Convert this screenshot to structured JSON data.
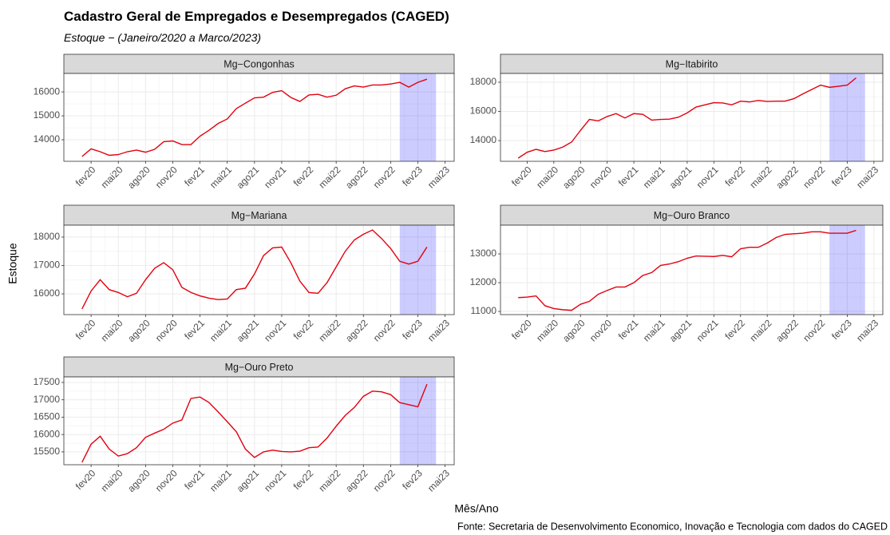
{
  "header": {
    "title": "Cadastro Geral de Empregados e Desempregados (CAGED)",
    "subtitle": "Estoque − (Janeiro/2020 a Marco/2023)",
    "xlabel": "Mês/Ano",
    "ylabel": "Estoque",
    "source": "Fonte: Secretaria de Desenvolvimento Economico, Inovação e Tecnologia com dados do CAGED"
  },
  "chart_data": [
    {
      "type": "line",
      "title": "Mg−Congonhas",
      "color": "#e3000f",
      "highlight": [
        "2022-12",
        "2023-04"
      ],
      "highlight_color": "#0000ff",
      "x": [
        "2020-01",
        "2020-02",
        "2020-03",
        "2020-04",
        "2020-05",
        "2020-06",
        "2020-07",
        "2020-08",
        "2020-09",
        "2020-10",
        "2020-11",
        "2020-12",
        "2021-01",
        "2021-02",
        "2021-03",
        "2021-04",
        "2021-05",
        "2021-06",
        "2021-07",
        "2021-08",
        "2021-09",
        "2021-10",
        "2021-11",
        "2021-12",
        "2022-01",
        "2022-02",
        "2022-03",
        "2022-04",
        "2022-05",
        "2022-06",
        "2022-07",
        "2022-08",
        "2022-09",
        "2022-10",
        "2022-11",
        "2022-12",
        "2023-01",
        "2023-02",
        "2023-03"
      ],
      "values": [
        13300,
        13620,
        13500,
        13350,
        13380,
        13500,
        13570,
        13480,
        13600,
        13920,
        13950,
        13800,
        13800,
        14150,
        14400,
        14680,
        14870,
        15300,
        15530,
        15750,
        15780,
        15980,
        16050,
        15770,
        15600,
        15870,
        15900,
        15780,
        15860,
        16130,
        16250,
        16200,
        16290,
        16290,
        16330,
        16400,
        16200,
        16400,
        16530
      ],
      "xlim": [
        "2019-11",
        "2023-06"
      ],
      "xticks": [
        {
          "value": "2020-02",
          "label": "fev20"
        },
        {
          "value": "2020-05",
          "label": "mai20"
        },
        {
          "value": "2020-08",
          "label": "ago20"
        },
        {
          "value": "2020-11",
          "label": "nov20"
        },
        {
          "value": "2021-02",
          "label": "fev21"
        },
        {
          "value": "2021-05",
          "label": "mai21"
        },
        {
          "value": "2021-08",
          "label": "ago21"
        },
        {
          "value": "2021-11",
          "label": "nov21"
        },
        {
          "value": "2022-02",
          "label": "fev22"
        },
        {
          "value": "2022-05",
          "label": "mai22"
        },
        {
          "value": "2022-08",
          "label": "ago22"
        },
        {
          "value": "2022-11",
          "label": "nov22"
        },
        {
          "value": "2023-02",
          "label": "fev23"
        },
        {
          "value": "2023-05",
          "label": "mai23"
        }
      ],
      "ylim": [
        13100,
        16770
      ],
      "yticks": [
        14000,
        15000,
        16000
      ],
      "grid": true
    },
    {
      "type": "line",
      "title": "Mg−Itabirito",
      "color": "#e3000f",
      "highlight": [
        "2022-12",
        "2023-04"
      ],
      "highlight_color": "#0000ff",
      "x": [
        "2020-01",
        "2020-02",
        "2020-03",
        "2020-04",
        "2020-05",
        "2020-06",
        "2020-07",
        "2020-08",
        "2020-09",
        "2020-10",
        "2020-11",
        "2020-12",
        "2021-01",
        "2021-02",
        "2021-03",
        "2021-04",
        "2021-05",
        "2021-06",
        "2021-07",
        "2021-08",
        "2021-09",
        "2021-10",
        "2021-11",
        "2021-12",
        "2022-01",
        "2022-02",
        "2022-03",
        "2022-04",
        "2022-05",
        "2022-06",
        "2022-07",
        "2022-08",
        "2022-09",
        "2022-10",
        "2022-11",
        "2022-12",
        "2023-01",
        "2023-02",
        "2023-03"
      ],
      "values": [
        12800,
        13200,
        13400,
        13250,
        13350,
        13550,
        13900,
        14700,
        15450,
        15350,
        15650,
        15850,
        15550,
        15850,
        15800,
        15400,
        15450,
        15470,
        15600,
        15900,
        16300,
        16450,
        16600,
        16580,
        16450,
        16700,
        16650,
        16750,
        16680,
        16700,
        16700,
        16870,
        17200,
        17500,
        17800,
        17650,
        17720,
        17800,
        18300
      ],
      "xlim": [
        "2019-11",
        "2023-06"
      ],
      "xticks": [
        {
          "value": "2020-02",
          "label": "fev20"
        },
        {
          "value": "2020-05",
          "label": "mai20"
        },
        {
          "value": "2020-08",
          "label": "ago20"
        },
        {
          "value": "2020-11",
          "label": "nov20"
        },
        {
          "value": "2021-02",
          "label": "fev21"
        },
        {
          "value": "2021-05",
          "label": "mai21"
        },
        {
          "value": "2021-08",
          "label": "ago21"
        },
        {
          "value": "2021-11",
          "label": "nov21"
        },
        {
          "value": "2022-02",
          "label": "fev22"
        },
        {
          "value": "2022-05",
          "label": "mai22"
        },
        {
          "value": "2022-08",
          "label": "ago22"
        },
        {
          "value": "2022-11",
          "label": "nov22"
        },
        {
          "value": "2023-02",
          "label": "fev23"
        },
        {
          "value": "2023-05",
          "label": "mai23"
        }
      ],
      "ylim": [
        12580,
        18600
      ],
      "yticks": [
        14000,
        16000,
        18000
      ],
      "grid": true
    },
    {
      "type": "line",
      "title": "Mg−Mariana",
      "color": "#e3000f",
      "highlight": [
        "2022-12",
        "2023-04"
      ],
      "highlight_color": "#0000ff",
      "x": [
        "2020-01",
        "2020-02",
        "2020-03",
        "2020-04",
        "2020-05",
        "2020-06",
        "2020-07",
        "2020-08",
        "2020-09",
        "2020-10",
        "2020-11",
        "2020-12",
        "2021-01",
        "2021-02",
        "2021-03",
        "2021-04",
        "2021-05",
        "2021-06",
        "2021-07",
        "2021-08",
        "2021-09",
        "2021-10",
        "2021-11",
        "2021-12",
        "2022-01",
        "2022-02",
        "2022-03",
        "2022-04",
        "2022-05",
        "2022-06",
        "2022-07",
        "2022-08",
        "2022-09",
        "2022-10",
        "2022-11",
        "2022-12",
        "2023-01",
        "2023-02",
        "2023-03"
      ],
      "values": [
        15470,
        16100,
        16500,
        16150,
        16050,
        15900,
        16020,
        16500,
        16900,
        17100,
        16850,
        16230,
        16050,
        15930,
        15850,
        15800,
        15820,
        16150,
        16200,
        16700,
        17350,
        17620,
        17650,
        17100,
        16450,
        16050,
        16020,
        16400,
        16950,
        17500,
        17900,
        18100,
        18250,
        17950,
        17600,
        17150,
        17050,
        17150,
        17650
      ],
      "xlim": [
        "2019-11",
        "2023-06"
      ],
      "xticks": [
        {
          "value": "2020-02",
          "label": "fev20"
        },
        {
          "value": "2020-05",
          "label": "mai20"
        },
        {
          "value": "2020-08",
          "label": "ago20"
        },
        {
          "value": "2020-11",
          "label": "nov20"
        },
        {
          "value": "2021-02",
          "label": "fev21"
        },
        {
          "value": "2021-05",
          "label": "mai21"
        },
        {
          "value": "2021-08",
          "label": "ago21"
        },
        {
          "value": "2021-11",
          "label": "nov21"
        },
        {
          "value": "2022-02",
          "label": "fev22"
        },
        {
          "value": "2022-05",
          "label": "mai22"
        },
        {
          "value": "2022-08",
          "label": "ago22"
        },
        {
          "value": "2022-11",
          "label": "nov22"
        },
        {
          "value": "2023-02",
          "label": "fev23"
        },
        {
          "value": "2023-05",
          "label": "mai23"
        }
      ],
      "ylim": [
        15270,
        18420
      ],
      "yticks": [
        16000,
        17000,
        18000
      ],
      "grid": true
    },
    {
      "type": "line",
      "title": "Mg−Ouro Branco",
      "color": "#e3000f",
      "highlight": [
        "2022-12",
        "2023-04"
      ],
      "highlight_color": "#0000ff",
      "x": [
        "2020-01",
        "2020-02",
        "2020-03",
        "2020-04",
        "2020-05",
        "2020-06",
        "2020-07",
        "2020-08",
        "2020-09",
        "2020-10",
        "2020-11",
        "2020-12",
        "2021-01",
        "2021-02",
        "2021-03",
        "2021-04",
        "2021-05",
        "2021-06",
        "2021-07",
        "2021-08",
        "2021-09",
        "2021-10",
        "2021-11",
        "2021-12",
        "2022-01",
        "2022-02",
        "2022-03",
        "2022-04",
        "2022-05",
        "2022-06",
        "2022-07",
        "2022-08",
        "2022-09",
        "2022-10",
        "2022-11",
        "2022-12",
        "2023-01",
        "2023-02",
        "2023-03"
      ],
      "values": [
        11480,
        11500,
        11540,
        11200,
        11100,
        11060,
        11040,
        11250,
        11350,
        11600,
        11730,
        11850,
        11850,
        12000,
        12250,
        12350,
        12600,
        12650,
        12730,
        12850,
        12930,
        12920,
        12910,
        12950,
        12900,
        13180,
        13230,
        13230,
        13380,
        13570,
        13680,
        13700,
        13720,
        13770,
        13770,
        13720,
        13720,
        13720,
        13820
      ],
      "xlim": [
        "2019-11",
        "2023-06"
      ],
      "xticks": [
        {
          "value": "2020-02",
          "label": "fev20"
        },
        {
          "value": "2020-05",
          "label": "mai20"
        },
        {
          "value": "2020-08",
          "label": "ago20"
        },
        {
          "value": "2020-11",
          "label": "nov20"
        },
        {
          "value": "2021-02",
          "label": "fev21"
        },
        {
          "value": "2021-05",
          "label": "mai21"
        },
        {
          "value": "2021-08",
          "label": "ago21"
        },
        {
          "value": "2021-11",
          "label": "nov21"
        },
        {
          "value": "2022-02",
          "label": "fev22"
        },
        {
          "value": "2022-05",
          "label": "mai22"
        },
        {
          "value": "2022-08",
          "label": "ago22"
        },
        {
          "value": "2022-11",
          "label": "nov22"
        },
        {
          "value": "2023-02",
          "label": "fev23"
        },
        {
          "value": "2023-05",
          "label": "mai23"
        }
      ],
      "ylim": [
        10890,
        14000
      ],
      "yticks": [
        11000,
        12000,
        13000
      ],
      "grid": true
    },
    {
      "type": "line",
      "title": "Mg−Ouro Preto",
      "color": "#e3000f",
      "highlight": [
        "2022-12",
        "2023-04"
      ],
      "highlight_color": "#0000ff",
      "x": [
        "2020-01",
        "2020-02",
        "2020-03",
        "2020-04",
        "2020-05",
        "2020-06",
        "2020-07",
        "2020-08",
        "2020-09",
        "2020-10",
        "2020-11",
        "2020-12",
        "2021-01",
        "2021-02",
        "2021-03",
        "2021-04",
        "2021-05",
        "2021-06",
        "2021-07",
        "2021-08",
        "2021-09",
        "2021-10",
        "2021-11",
        "2021-12",
        "2022-01",
        "2022-02",
        "2022-03",
        "2022-04",
        "2022-05",
        "2022-06",
        "2022-07",
        "2022-08",
        "2022-09",
        "2022-10",
        "2022-11",
        "2022-12",
        "2023-01",
        "2023-02",
        "2023-03"
      ],
      "values": [
        15200,
        15720,
        15950,
        15580,
        15380,
        15450,
        15620,
        15920,
        16040,
        16150,
        16330,
        16420,
        17040,
        17080,
        16920,
        16650,
        16370,
        16080,
        15580,
        15340,
        15500,
        15550,
        15510,
        15500,
        15520,
        15620,
        15640,
        15900,
        16240,
        16550,
        16780,
        17100,
        17250,
        17230,
        17150,
        16920,
        16860,
        16800,
        17450
      ],
      "xlim": [
        "2019-11",
        "2023-06"
      ],
      "xticks": [
        {
          "value": "2020-02",
          "label": "fev20"
        },
        {
          "value": "2020-05",
          "label": "mai20"
        },
        {
          "value": "2020-08",
          "label": "ago20"
        },
        {
          "value": "2020-11",
          "label": "nov20"
        },
        {
          "value": "2021-02",
          "label": "fev21"
        },
        {
          "value": "2021-05",
          "label": "mai21"
        },
        {
          "value": "2021-08",
          "label": "ago21"
        },
        {
          "value": "2021-11",
          "label": "nov21"
        },
        {
          "value": "2022-02",
          "label": "fev22"
        },
        {
          "value": "2022-05",
          "label": "mai22"
        },
        {
          "value": "2022-08",
          "label": "ago22"
        },
        {
          "value": "2022-11",
          "label": "nov22"
        },
        {
          "value": "2023-02",
          "label": "fev23"
        },
        {
          "value": "2023-05",
          "label": "mai23"
        }
      ],
      "ylim": [
        15130,
        17660
      ],
      "yticks": [
        15500,
        16000,
        16500,
        17000,
        17500
      ],
      "grid": true
    }
  ]
}
